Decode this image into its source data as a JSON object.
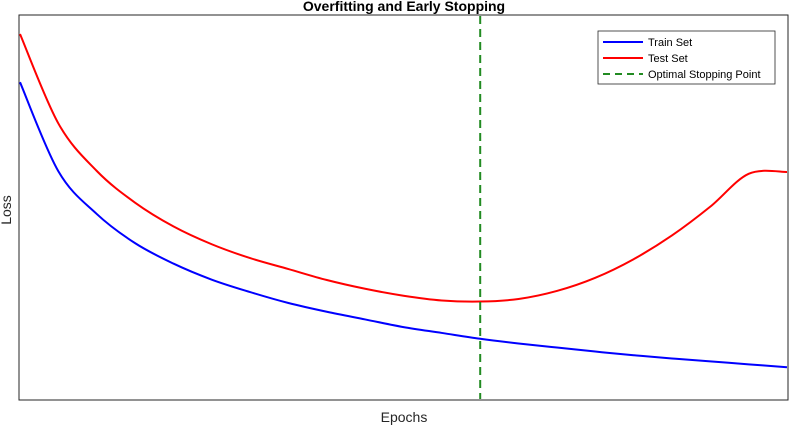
{
  "chart_data": {
    "type": "line",
    "title": "Overfitting and Early Stopping",
    "xlabel": "Epochs",
    "ylabel": "Loss",
    "xticks": "none",
    "yticks": "none",
    "xlim": [
      0,
      100
    ],
    "ylim": [
      0,
      100
    ],
    "legend_position": "top-right",
    "grid": false,
    "series": [
      {
        "name": "Train Set",
        "color": "#0000ff",
        "style": "solid",
        "x": [
          0,
          5,
          10,
          15,
          20,
          25,
          30,
          35,
          40,
          45,
          50,
          55,
          60,
          65,
          70,
          75,
          80,
          85,
          90,
          95,
          100
        ],
        "y": [
          86.8,
          62.4,
          50.7,
          42.7,
          37.1,
          32.7,
          29.3,
          26.3,
          23.9,
          21.8,
          19.7,
          18.1,
          16.5,
          15.2,
          14.1,
          13.0,
          12.0,
          11.1,
          10.3,
          9.5,
          8.7
        ]
      },
      {
        "name": "Test Set",
        "color": "#ff0000",
        "style": "solid",
        "x": [
          0,
          5,
          10,
          15,
          20,
          25,
          30,
          35,
          40,
          45,
          50,
          55,
          60,
          65,
          70,
          75,
          80,
          85,
          90,
          95,
          100
        ],
        "y": [
          100.0,
          75.5,
          62.5,
          53.8,
          47.3,
          42.4,
          38.6,
          35.6,
          32.6,
          30.2,
          28.3,
          27.0,
          26.7,
          27.4,
          29.6,
          33.2,
          38.3,
          44.8,
          52.7,
          61.7,
          62.2
        ]
      }
    ],
    "annotations": [
      {
        "type": "vline",
        "name": "Optimal Stopping Point",
        "x": 60,
        "color": "#228b22",
        "style": "dashed"
      }
    ]
  }
}
